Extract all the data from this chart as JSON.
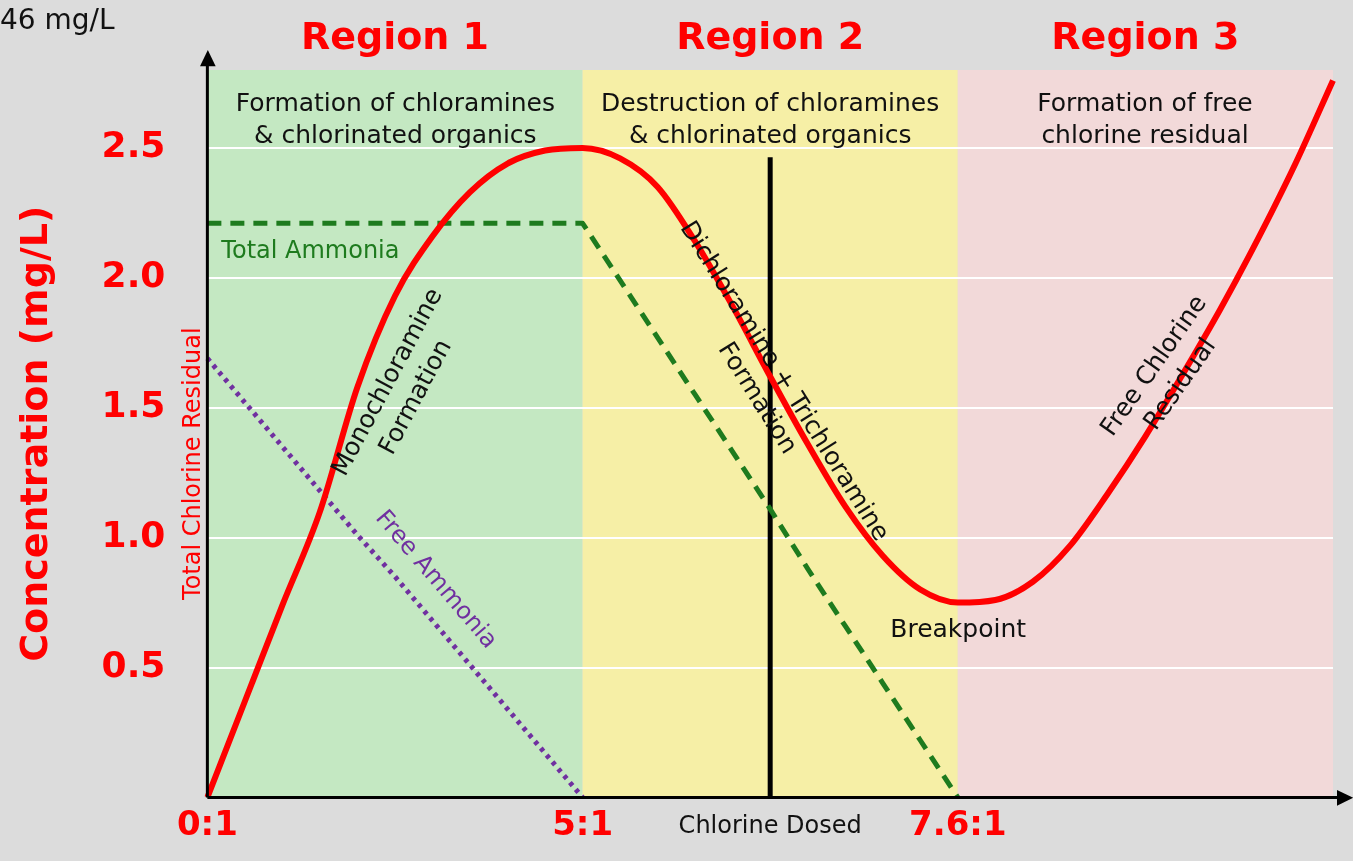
{
  "chart_data": {
    "type": "line",
    "xlabel": "Chlorine Dosed",
    "ylabel": "Concentration (mg/L)",
    "categories": [
      "0:1",
      null,
      null,
      null,
      null,
      null,
      null,
      null,
      null,
      null,
      "5:1",
      null,
      null,
      null,
      null,
      null,
      null,
      null,
      null,
      null,
      "7.6:1",
      null,
      null,
      null,
      null,
      null,
      null,
      null,
      null,
      null,
      null
    ],
    "ylim": [
      0,
      2.8
    ],
    "yticks": [
      0.5,
      {
        "value": 1,
        "label": "1.0"
      },
      1.5,
      {
        "value": 2,
        "label": "2.0"
      },
      2.5
    ],
    "grid": "y",
    "legend": false,
    "marker": "none",
    "series": [
      {
        "name": "Total Chlorine Residual",
        "color": "#ff0000",
        "line_style": "solid",
        "values": [
          0,
          0.37,
          0.74,
          1.1,
          1.58,
          1.93,
          2.16,
          2.33,
          2.44,
          2.49,
          2.5,
          2.46,
          2.35,
          2.14,
          1.89,
          1.62,
          1.36,
          1.12,
          0.93,
          0.8,
          0.75,
          0.76,
          0.83,
          0.97,
          1.17,
          1.39,
          1.63,
          1.88,
          2.15,
          2.44,
          2.76
        ]
      },
      {
        "name": "Total Ammonia",
        "color": "#1e7b1e",
        "line_style": "dashed",
        "values": [
          2.21,
          2.21,
          2.21,
          2.21,
          2.21,
          2.21,
          2.21,
          2.21,
          2.21,
          2.21,
          2.21,
          1.99,
          1.77,
          1.55,
          1.33,
          1.11,
          0.88,
          0.66,
          0.44,
          0.22,
          0,
          null,
          null,
          null,
          null,
          null,
          null,
          null,
          null,
          null,
          null
        ]
      },
      {
        "name": "Free Ammonia",
        "color": "#7030a0",
        "line_style": "dotted",
        "values": [
          1.69,
          1.52,
          1.35,
          1.18,
          1.01,
          0.85,
          0.68,
          0.51,
          0.34,
          0.17,
          0,
          null,
          null,
          null,
          null,
          null,
          null,
          null,
          null,
          null,
          null,
          null,
          null,
          null,
          null,
          null,
          null,
          null,
          null,
          null,
          null
        ]
      }
    ],
    "bands": [
      {
        "axis": "x",
        "from": "0:1",
        "to": "5:1",
        "label": "Region 1",
        "color": "#c4e8c2"
      },
      {
        "axis": "x",
        "from": "5:1",
        "to": "7.6:1",
        "label": "Region 2",
        "color": "#f6efa6"
      }
    ],
    "annotations": [
      "46 mg/L",
      "Formation of chloramines\n& chlorinated organics",
      "Destruction of chloramines\n& chlorinated organics",
      "Formation of free\nchlorine residual",
      "Monochloramine\nFormation",
      "Dichloramine + Trichloramine\nFormation",
      "Free Chlorine\nResidual",
      "Breakpoint",
      "Region 3"
    ]
  }
}
